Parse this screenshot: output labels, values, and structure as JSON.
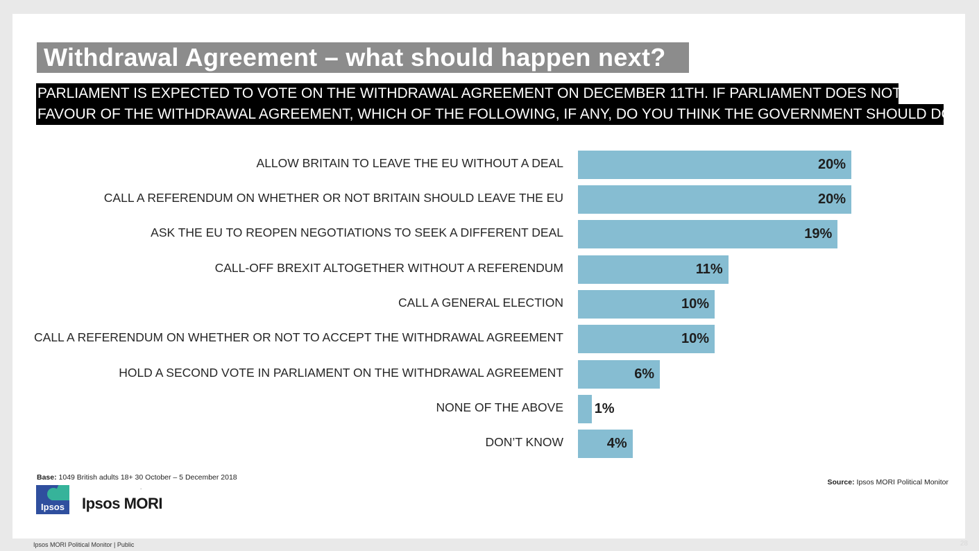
{
  "title": "Withdrawal Agreement – what should happen next?",
  "question": {
    "line1": "PARLIAMENT IS EXPECTED TO VOTE ON THE WITHDRAWAL AGREEMENT ON DECEMBER 11TH. IF PARLIAMENT DOES NOT VOTE IN",
    "line2": "FAVOUR OF THE WITHDRAWAL AGREEMENT, WHICH OF THE FOLLOWING, IF ANY, DO YOU THINK THE GOVERNMENT SHOULD DO NEXT?"
  },
  "chart_data": {
    "type": "bar",
    "orientation": "horizontal",
    "categories": [
      "ALLOW BRITAIN TO LEAVE THE EU WITHOUT A DEAL",
      "CALL A REFERENDUM ON WHETHER OR NOT BRITAIN SHOULD LEAVE THE EU",
      "ASK THE EU TO REOPEN NEGOTIATIONS TO SEEK A DIFFERENT DEAL",
      "CALL-OFF BREXIT ALTOGETHER WITHOUT A REFERENDUM",
      "CALL A GENERAL ELECTION",
      "CALL A REFERENDUM ON WHETHER OR NOT TO ACCEPT THE WITHDRAWAL AGREEMENT",
      "HOLD A SECOND VOTE IN PARLIAMENT ON THE WITHDRAWAL AGREEMENT",
      "NONE OF THE ABOVE",
      "DON’T KNOW"
    ],
    "values": [
      20,
      20,
      19,
      11,
      10,
      10,
      6,
      1,
      4
    ],
    "value_labels": [
      "20%",
      "20%",
      "19%",
      "11%",
      "10%",
      "10%",
      "6%",
      "1%",
      "4%"
    ],
    "unit": "%",
    "xlim": [
      0,
      20
    ],
    "bar_color": "#86bdd2",
    "grid": false,
    "legend": "none"
  },
  "base": {
    "label": "Base:",
    "text": "1049 British adults 18+ 30 October – 5 December 2018"
  },
  "source": {
    "label": "Source:",
    "text": "Ipsos MORI Political Monitor"
  },
  "logo": {
    "icon_text": "Ipsos",
    "brand": "Ipsos MORI"
  },
  "footer": "Ipsos MORI Political Monitor | Public",
  "page_number": "28",
  "colors": {
    "title_bg": "#8c8c8c",
    "question_bg": "#000000",
    "bar": "#86bdd2",
    "logo_blue": "#2f4f9e",
    "logo_teal": "#36b39a"
  }
}
